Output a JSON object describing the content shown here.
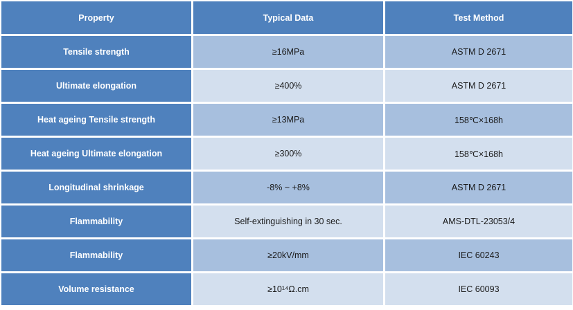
{
  "header": {
    "property": "Property",
    "typical": "Typical Data",
    "method": "Test Method"
  },
  "rows": [
    {
      "property": "Tensile strength",
      "typical": "≥16MPa",
      "method": "ASTM D 2671"
    },
    {
      "property": "Ultimate elongation",
      "typical": "≥400%",
      "method": "ASTM D 2671"
    },
    {
      "property": "Heat ageing Tensile strength",
      "typical": "≥13MPa",
      "method": "158℃×168h"
    },
    {
      "property": "Heat ageing Ultimate elongation",
      "typical": "≥300%",
      "method": "158℃×168h"
    },
    {
      "property": "Longitudinal shrinkage",
      "typical": "-8% ~ +8%",
      "method": "ASTM D 2671"
    },
    {
      "property": "Flammability",
      "typical": "Self-extinguishing in 30 sec.",
      "method": "AMS-DTL-23053/4"
    },
    {
      "property": "Flammability",
      "typical": "≥20kV/mm",
      "method": "IEC 60243"
    },
    {
      "property": "Volume resistance",
      "typical": "≥10¹⁴Ω.cm",
      "method": "IEC 60093"
    }
  ],
  "colors": {
    "header": "#4f81bd",
    "band_dark": "#a7bfde",
    "band_light": "#d3dfee"
  }
}
